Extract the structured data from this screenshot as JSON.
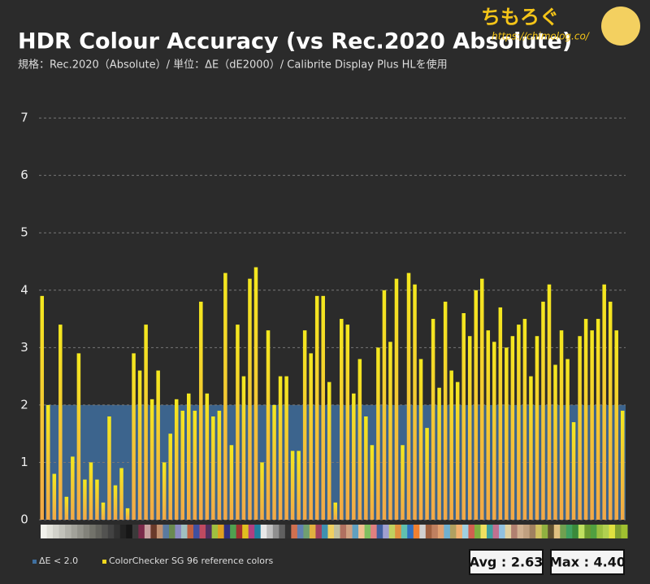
{
  "chart_data": {
    "type": "bar",
    "title": "HDR Colour Accuracy (vs Rec.2020 Absolute)",
    "subtitle": "規格：Rec.2020（Absolute）/ 単位：ΔE（dE2000）/ Calibrite Display Plus HLを使用",
    "brand": "ちもろぐ",
    "url": "https://chimolog.co/",
    "series": [
      {
        "name": "ColorChecker SG 96 reference colors",
        "color": "#f2d81e",
        "values": [
          3.9,
          2.0,
          0.8,
          3.4,
          0.4,
          1.1,
          2.9,
          0.7,
          1.0,
          0.7,
          0.3,
          1.8,
          0.6,
          0.9,
          0.2,
          2.9,
          2.6,
          3.4,
          2.1,
          2.6,
          1.0,
          1.5,
          2.1,
          1.9,
          2.2,
          1.9,
          3.8,
          2.2,
          1.8,
          1.9,
          4.3,
          1.3,
          3.4,
          2.5,
          4.2,
          4.4,
          1.0,
          3.3,
          2.0,
          2.5,
          2.5,
          1.2,
          1.2,
          3.3,
          2.9,
          3.9,
          3.9,
          2.4,
          0.3,
          3.5,
          3.4,
          2.2,
          2.8,
          1.8,
          1.3,
          3.0,
          4.0,
          3.1,
          4.2,
          1.3,
          4.3,
          4.1,
          2.8,
          1.6,
          3.5,
          2.3,
          3.8,
          2.6,
          2.4,
          3.6,
          3.2,
          4.0,
          4.2,
          3.3,
          3.1,
          3.7,
          3.0,
          3.2,
          3.4,
          3.5,
          2.5,
          3.2,
          3.8,
          4.1,
          2.7,
          3.3,
          2.8,
          1.7,
          3.2,
          3.5,
          3.3,
          3.5,
          4.1,
          3.8,
          3.3,
          1.9
        ]
      }
    ],
    "threshold": {
      "name": "ΔE < 2.0",
      "value": 2,
      "color": "#3f6f9f"
    },
    "category_colors": [
      "#f2f2ec",
      "#e2e2da",
      "#d2d2ca",
      "#c2c2ba",
      "#b2b2aa",
      "#a2a29a",
      "#92928a",
      "#82827a",
      "#72726a",
      "#62625c",
      "#525250",
      "#424242",
      "#323232",
      "#222222",
      "#161616",
      "#3a3a3a",
      "#7a2a4a",
      "#c8a0a0",
      "#6a3a2a",
      "#c09070",
      "#5a7aa0",
      "#6a8a50",
      "#8a8ac0",
      "#a0c0c0",
      "#c06040",
      "#4050a0",
      "#c04a60",
      "#503060",
      "#a0c040",
      "#e0a020",
      "#303080",
      "#50a050",
      "#a03030",
      "#e0c020",
      "#b04080",
      "#2080a0",
      "#e8e8e8",
      "#c0c0c0",
      "#909090",
      "#606060",
      "#303030",
      "#d07050",
      "#6080b0",
      "#70a070",
      "#e0b040",
      "#a04060",
      "#4090b0",
      "#f0d060",
      "#c0c0a0",
      "#b07060",
      "#d0a080",
      "#60a0c0",
      "#f0c090",
      "#80c060",
      "#e08080",
      "#4060a0",
      "#a0a0d0",
      "#c0d060",
      "#e09040",
      "#60c0b0",
      "#3070c0",
      "#f08030",
      "#d0d0d0",
      "#a06040",
      "#c08060",
      "#e0a070",
      "#70b0d0",
      "#b0a060",
      "#f0b070",
      "#a0d0e0",
      "#d06050",
      "#80b040",
      "#f0e060",
      "#40a0a0",
      "#c07090",
      "#90c0e0",
      "#e0d0a0",
      "#b08070",
      "#d0b090",
      "#c0a080",
      "#a08060",
      "#d0c060",
      "#90b040",
      "#605030",
      "#e0c080",
      "#70a050",
      "#40a060",
      "#3a8a3a",
      "#c0e060",
      "#6a9a30",
      "#50a040",
      "#9ac040",
      "#b0d050",
      "#e0e040",
      "#80a030",
      "#a0c030"
    ],
    "ylim": [
      0,
      7.2
    ],
    "yticks": [
      0,
      1,
      2,
      3,
      4,
      5,
      6,
      7
    ],
    "grid": true,
    "annotations": [
      "Avg : 2.63",
      "Max : 4.40"
    ]
  }
}
